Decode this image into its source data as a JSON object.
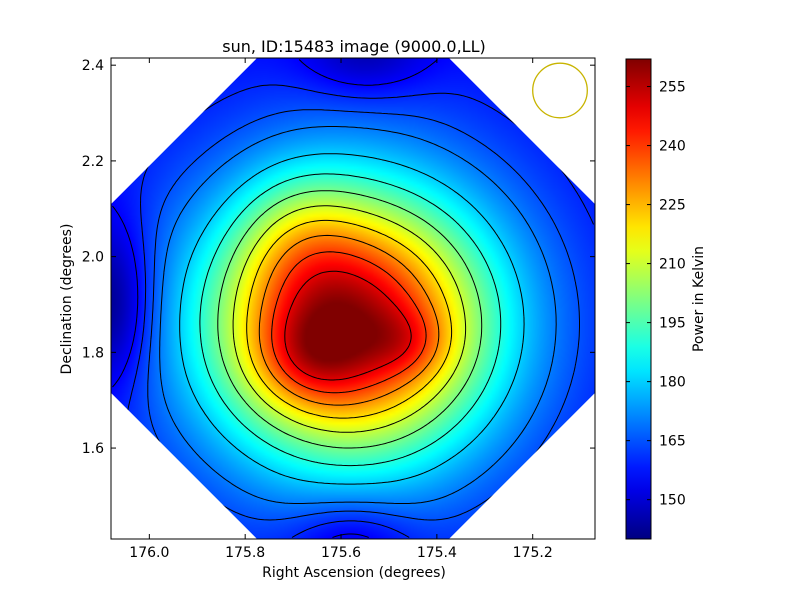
{
  "chart_data": {
    "type": "heatmap",
    "title": "sun, ID:15483 image (9000.0,LL)",
    "xlabel": "Right Ascension (degrees)",
    "ylabel": "Declination (degrees)",
    "xlim": [
      176.08,
      175.07
    ],
    "ylim": [
      1.41,
      2.415
    ],
    "x_ticks": [
      "176.0",
      "175.8",
      "175.6",
      "175.4",
      "175.2"
    ],
    "x_tick_values": [
      176.0,
      175.8,
      175.6,
      175.4,
      175.2
    ],
    "y_ticks": [
      "1.6",
      "1.8",
      "2.0",
      "2.2",
      "2.4"
    ],
    "y_tick_values": [
      1.6,
      1.8,
      2.0,
      2.2,
      2.4
    ],
    "colormap": "jet",
    "colorbar": {
      "label": "Power in Kelvin",
      "range": [
        140,
        262
      ],
      "ticks": [
        "150",
        "165",
        "180",
        "195",
        "210",
        "225",
        "240",
        "255"
      ],
      "tick_values": [
        150,
        165,
        180,
        195,
        210,
        225,
        240,
        255
      ]
    },
    "beam_marker": {
      "shape": "circle",
      "color": "#c8b400",
      "ra": 175.143,
      "dec": 2.347,
      "radius_deg": 0.057
    },
    "peaks": [
      {
        "ra": 175.67,
        "dec": 1.79,
        "value": 260
      },
      {
        "ra": 175.48,
        "dec": 1.82,
        "value": 257
      }
    ],
    "blobs": [
      {
        "ra": 175.58,
        "dec": 1.86,
        "sigma_ra": 0.2,
        "sigma_dec": 0.19,
        "amp": 93
      },
      {
        "ra": 175.67,
        "dec": 1.79,
        "sigma_ra": 0.08,
        "sigma_dec": 0.07,
        "amp": 15
      },
      {
        "ra": 175.46,
        "dec": 1.82,
        "sigma_ra": 0.06,
        "sigma_dec": 0.05,
        "amp": 10
      },
      {
        "ra": 175.69,
        "dec": 2.03,
        "sigma_ra": 0.09,
        "sigma_dec": 0.11,
        "amp": 12
      }
    ],
    "background": 165,
    "minima": [
      {
        "ra": 176.08,
        "dec": 1.9,
        "sigma_ra": 0.06,
        "sigma_dec": 0.12,
        "amp": 20
      },
      {
        "ra": 175.55,
        "dec": 2.42,
        "sigma_ra": 0.09,
        "sigma_dec": 0.06,
        "amp": 12
      },
      {
        "ra": 175.58,
        "dec": 1.41,
        "sigma_ra": 0.09,
        "sigma_dec": 0.06,
        "amp": 12
      }
    ],
    "contour_levels": [
      155,
      160,
      165,
      170,
      180,
      190,
      200,
      210,
      220,
      230,
      240,
      250
    ],
    "grid": false
  }
}
